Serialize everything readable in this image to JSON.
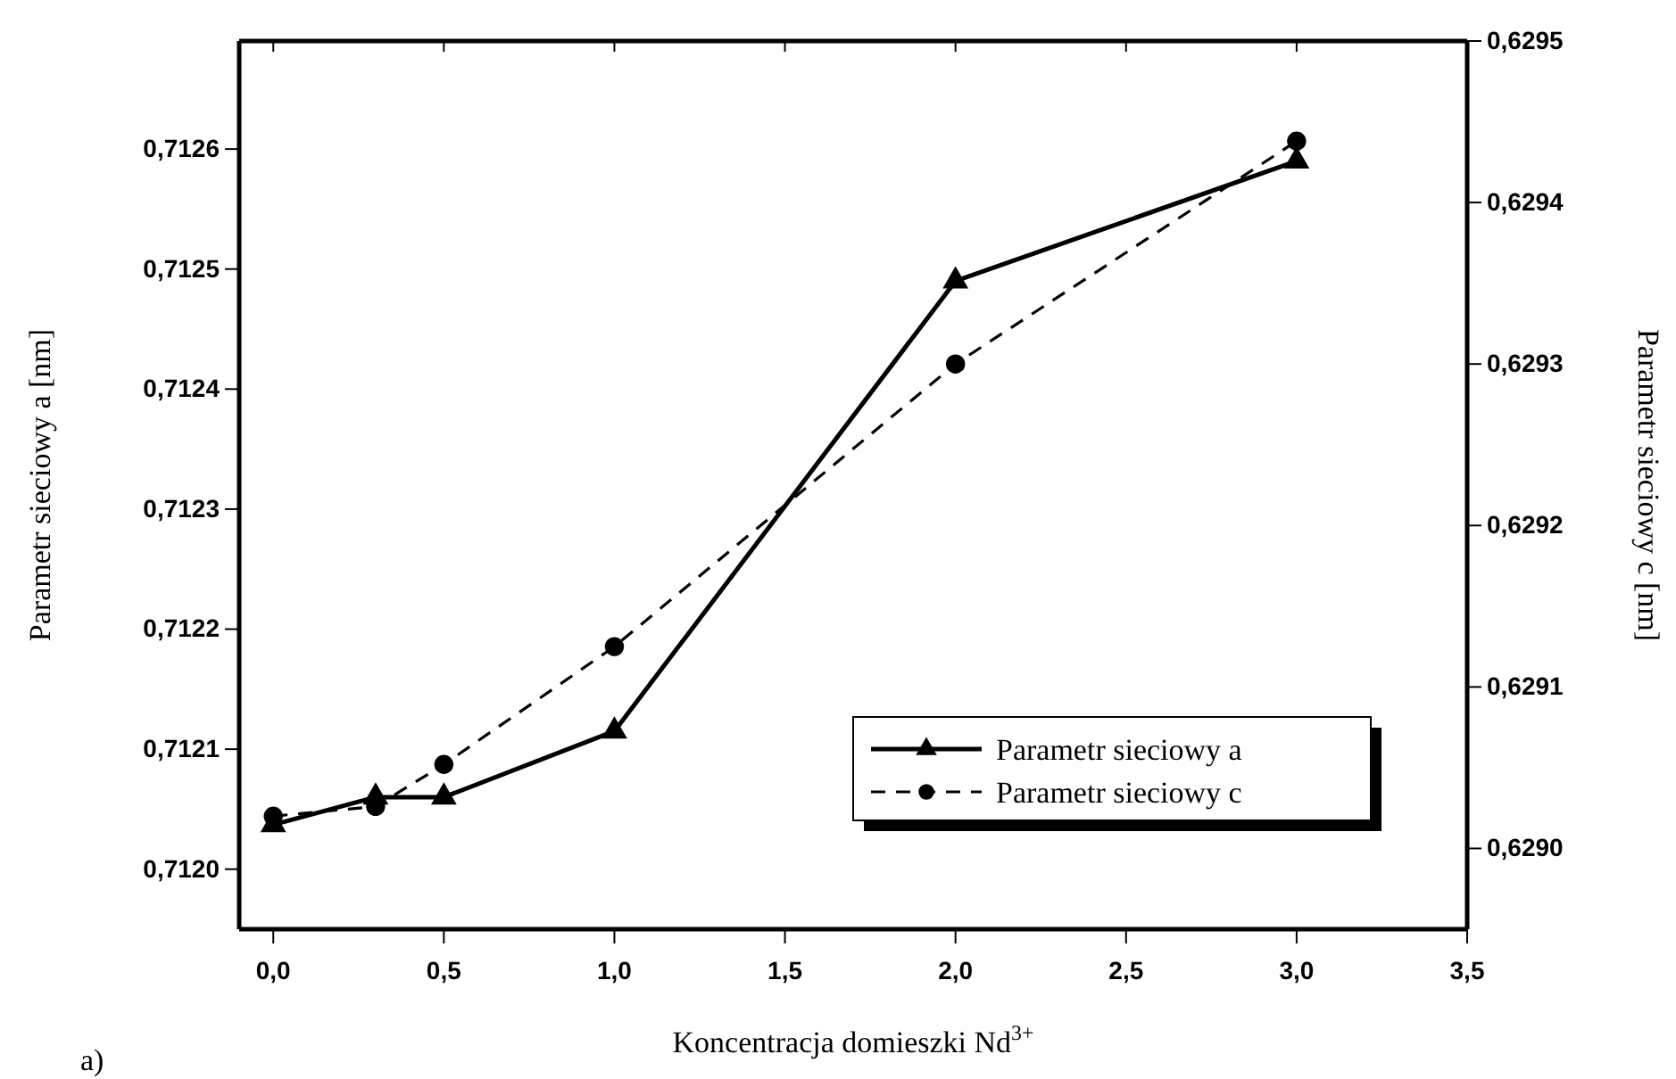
{
  "chart_data": {
    "type": "line",
    "xlabel": "Koncentracja domieszki Nd$^{3+}$",
    "ylabel": "Parametr sieciowy a [nm]",
    "y2label": "Parametr sieciowy c [nm]",
    "annotations": [
      "a)"
    ],
    "x": [
      0,
      0.3,
      0.5,
      1.0,
      2.0,
      3.0
    ],
    "series": [
      {
        "name": "Parametr sieciowy a",
        "color": "#000000",
        "values": [
          0.712037,
          0.71206,
          0.71206,
          0.712115,
          0.71249,
          0.71259
        ],
        "marker": "triangle",
        "line_style": "solid"
      },
      {
        "name": "Parametr sieciowy c",
        "color": "#000000",
        "values": [
          0.62902,
          0.629026,
          0.629052,
          0.629125,
          0.6293,
          0.629438
        ],
        "marker": "circle",
        "line_style": "dashed",
        "axis": "y2"
      }
    ],
    "xlim": [
      -0.1,
      3.5
    ],
    "ylim": [
      0.71195,
      0.71269
    ],
    "y2lim": [
      0.62895,
      0.6295
    ],
    "xticks": [
      {
        "value": 0,
        "label": "0,0"
      },
      {
        "value": 0.5,
        "label": "0,5"
      },
      {
        "value": 1,
        "label": "1,0"
      },
      {
        "value": 1.5,
        "label": "1,5"
      },
      {
        "value": 2,
        "label": "2,0"
      },
      {
        "value": 2.5,
        "label": "2,5"
      },
      {
        "value": 3,
        "label": "3,0"
      },
      {
        "value": 3.5,
        "label": "3,5"
      }
    ],
    "yticks": [
      {
        "value": 0.712,
        "label": "0,7120"
      },
      {
        "value": 0.7121,
        "label": "0,7121"
      },
      {
        "value": 0.7122,
        "label": "0,7122"
      },
      {
        "value": 0.7123,
        "label": "0,7123"
      },
      {
        "value": 0.7124,
        "label": "0,7124"
      },
      {
        "value": 0.7125,
        "label": "0,7125"
      },
      {
        "value": 0.7126,
        "label": "0,7126"
      }
    ],
    "y2ticks": [
      {
        "value": 0.629,
        "label": "0,6290"
      },
      {
        "value": 0.6291,
        "label": "0,6291"
      },
      {
        "value": 0.6292,
        "label": "0,6292"
      },
      {
        "value": 0.6293,
        "label": "0,6293"
      },
      {
        "value": 0.6294,
        "label": "0,6294"
      },
      {
        "value": 0.6295,
        "label": "0,6295"
      }
    ],
    "grid": false,
    "legend": "bottom right"
  }
}
